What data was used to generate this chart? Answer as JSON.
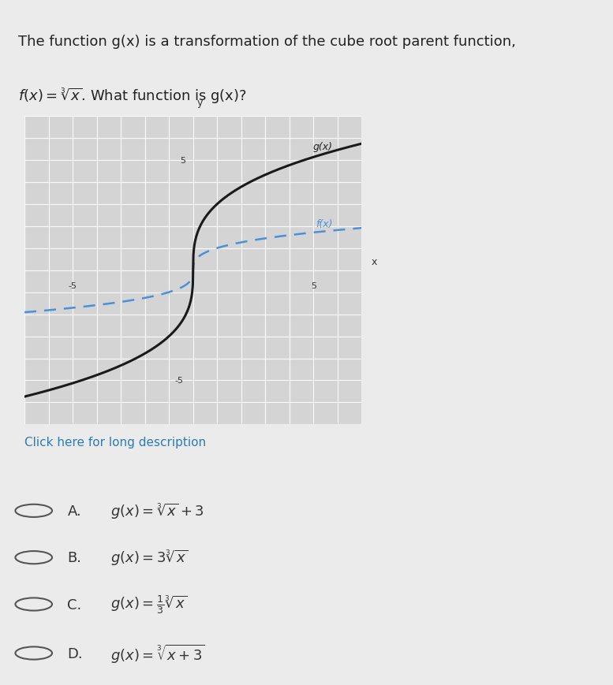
{
  "title_line1": "The function g(x) is a transformation of the cube root parent function,",
  "title_line2": "f(x) = ∛x. What function is g(x)?",
  "bg_color": "#f0f0f0",
  "page_bg": "#e8e8e8",
  "graph_bg": "#d8d8d8",
  "graph_xlim": [
    -7,
    7
  ],
  "graph_ylim": [
    -7,
    7
  ],
  "axis_tick_major": 5,
  "fx_color": "#4a90d9",
  "gx_color": "#1a1a1a",
  "fx_label": "f(x)",
  "gx_label": "g(x)",
  "click_text": "Click here for long description",
  "click_color": "#2a7db5",
  "options": [
    "A. g(x) = ∛x + 3",
    "B. g(x) = 3∛x",
    "C. g(x) = ¹⁄₃∛x",
    "D. g(x) = ∛(x + 3)"
  ],
  "separator_color": "#cccccc",
  "option_text_color": "#333333",
  "radio_color": "#555555"
}
